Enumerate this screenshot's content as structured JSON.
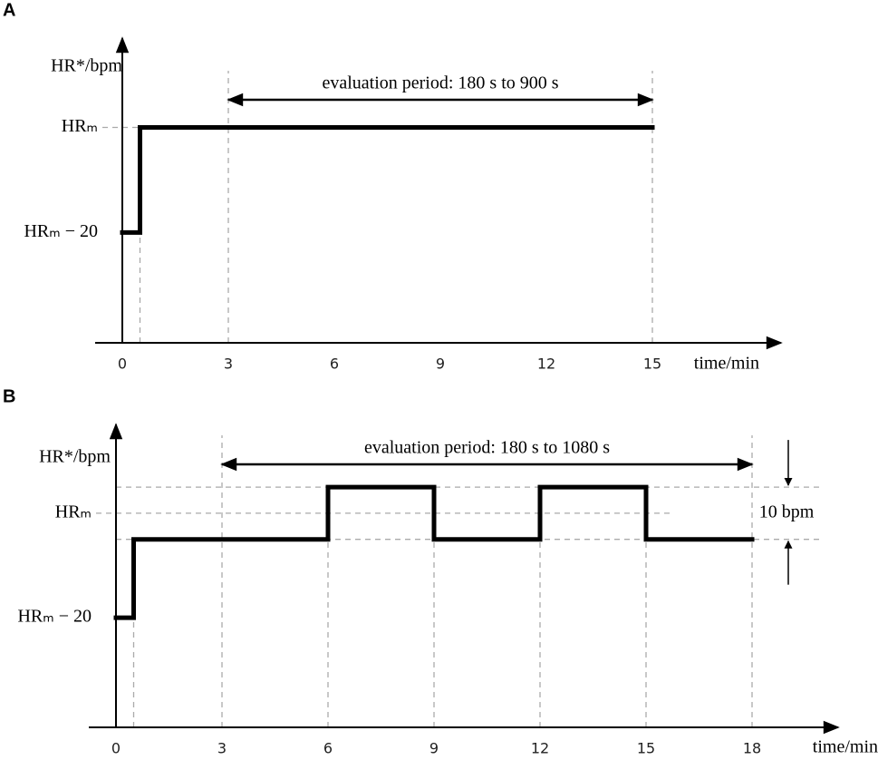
{
  "chart_data": [
    {
      "type": "line",
      "panel_label": "A",
      "ylabel": "HR*/bpm",
      "xlabel": "time/min",
      "color": "#000000",
      "x": [
        0,
        0.5,
        0.5,
        15
      ],
      "values": [
        -20,
        -20,
        0,
        0
      ],
      "xlim": [
        0,
        18.6
      ],
      "xticks": [
        0,
        3,
        6,
        9,
        12,
        15
      ],
      "ylim": [
        -41,
        17
      ],
      "yticks": [
        {
          "value": -20,
          "label": "HRₘ − 20"
        },
        {
          "value": 0,
          "label": "HRₘ"
        }
      ],
      "period": [
        3,
        15
      ],
      "period_label": "evaluation period: 180 s to 900 s"
    },
    {
      "type": "line",
      "panel_label": "B",
      "ylabel": "HR*/bpm",
      "xlabel": "time/min",
      "color": "#000000",
      "x": [
        0,
        0.5,
        0.5,
        6,
        6,
        9,
        9,
        12,
        12,
        15,
        15,
        18
      ],
      "values": [
        -20,
        -20,
        -5,
        -5,
        5,
        5,
        -5,
        -5,
        5,
        5,
        -5,
        -5
      ],
      "xlim": [
        0,
        20.4
      ],
      "xticks": [
        0,
        3,
        6,
        9,
        12,
        15,
        18
      ],
      "ylim": [
        -41,
        17
      ],
      "yticks": [
        {
          "value": -20,
          "label": "HRₘ − 20"
        },
        {
          "value": 0,
          "label": "HRₘ"
        }
      ],
      "period": [
        3,
        18
      ],
      "period_label": "evaluation period: 180 s to 1080 s",
      "span": [
        -5,
        5
      ],
      "span_label": "10 bpm"
    }
  ]
}
